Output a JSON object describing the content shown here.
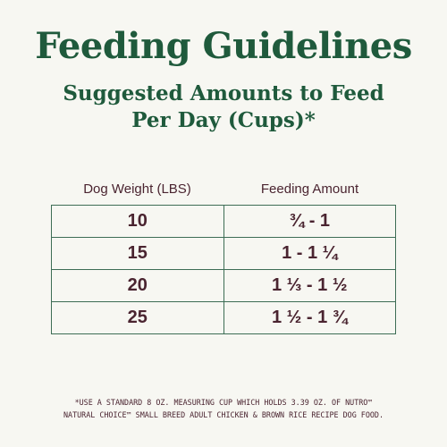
{
  "title": "Feeding Guidelines",
  "subtitle": {
    "line1": "Suggested Amounts to Feed",
    "line2": "Per Day (Cups)*"
  },
  "table": {
    "headers": [
      "Dog Weight (LBS)",
      "Feeding Amount"
    ],
    "rows": [
      {
        "weight": "10",
        "amount": "¾ - 1"
      },
      {
        "weight": "15",
        "amount": "1 - 1 ¼"
      },
      {
        "weight": "20",
        "amount": "1 ⅓ - 1 ½"
      },
      {
        "weight": "25",
        "amount": "1 ½ - 1 ¾"
      }
    ]
  },
  "footnote": {
    "line1": "*USE A STANDARD 8 OZ. MEASURING CUP WHICH HOLDS 3.39 OZ. OF NUTRO™",
    "line2": "NATURAL CHOICE™ SMALL BREED ADULT CHICKEN & BROWN RICE RECIPE DOG FOOD."
  },
  "colors": {
    "background": "#f7f7f2",
    "heading_green": "#1f5a3c",
    "text_maroon": "#4a2430",
    "table_border": "#3d6d55"
  }
}
